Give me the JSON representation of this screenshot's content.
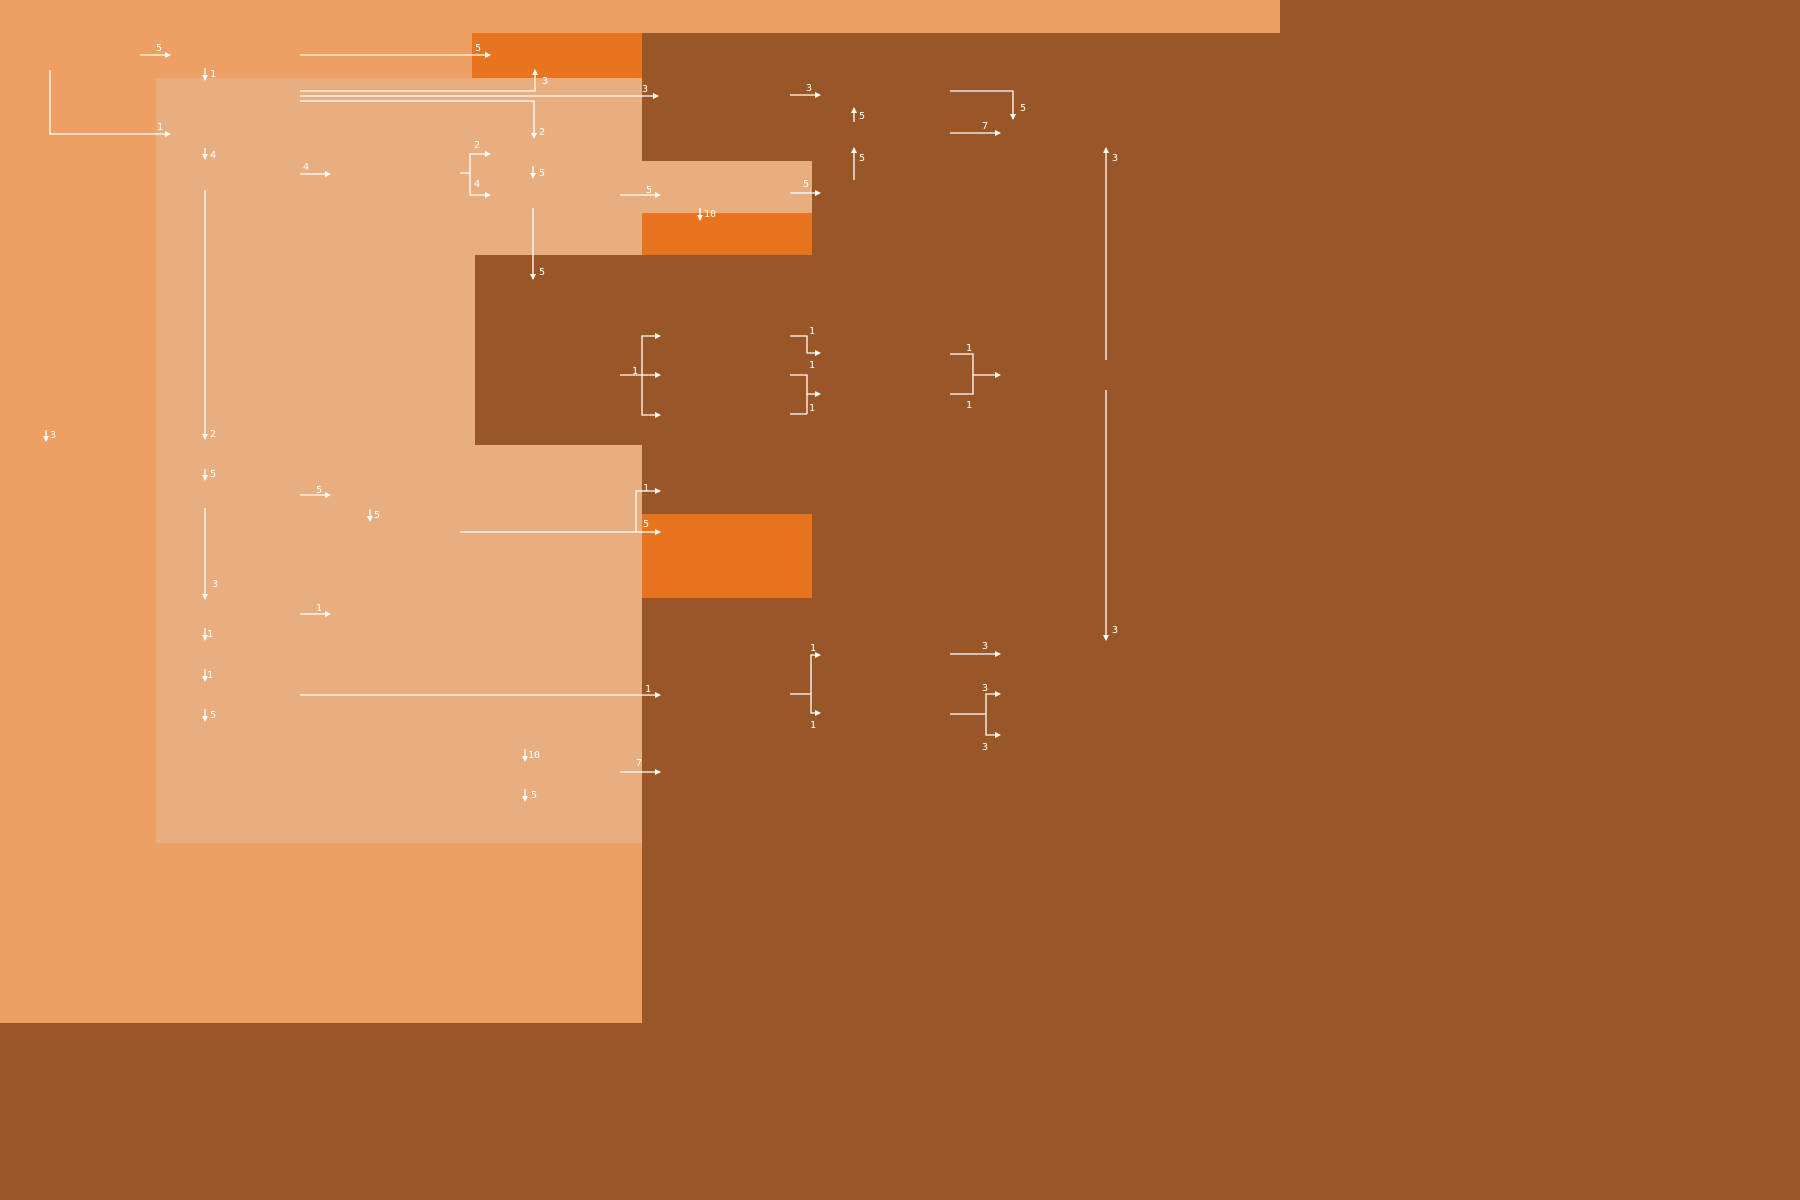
{
  "colors": {
    "background": "#995626",
    "region_outer": "#ed9f64",
    "region_inner": "#e8ae80",
    "highlight": "#e97420",
    "line": "#ffffff"
  },
  "labels": {
    "l01": "5",
    "l02": "5",
    "l03": "1",
    "l04": "3",
    "l05": "3",
    "l06": "3",
    "l07": "5",
    "l08": "5",
    "l09": "7",
    "l10": "1",
    "l11": "2",
    "l12": "4",
    "l13": "5",
    "l14": "4",
    "l15": "2",
    "l16": "4",
    "l17": "5",
    "l18": "5",
    "l19": "5",
    "l20": "10",
    "l21": "3",
    "l22": "5",
    "l23": "1",
    "l24": "1",
    "l25": "1",
    "l26": "1",
    "l27": "1",
    "l28": "1",
    "l29": "3",
    "l30": "2",
    "l31": "5",
    "l32": "5",
    "l33": "5",
    "l34": "1",
    "l35": "5",
    "l36": "3",
    "l37": "1",
    "l38": "1",
    "l39": "1",
    "l40": "1",
    "l41": "1",
    "l42": "5",
    "l43": "3",
    "l44": "3",
    "l45": "1",
    "l46": "3",
    "l47": "1",
    "l48": "7",
    "l49": "10",
    "l50": "5",
    "l51": "3"
  }
}
